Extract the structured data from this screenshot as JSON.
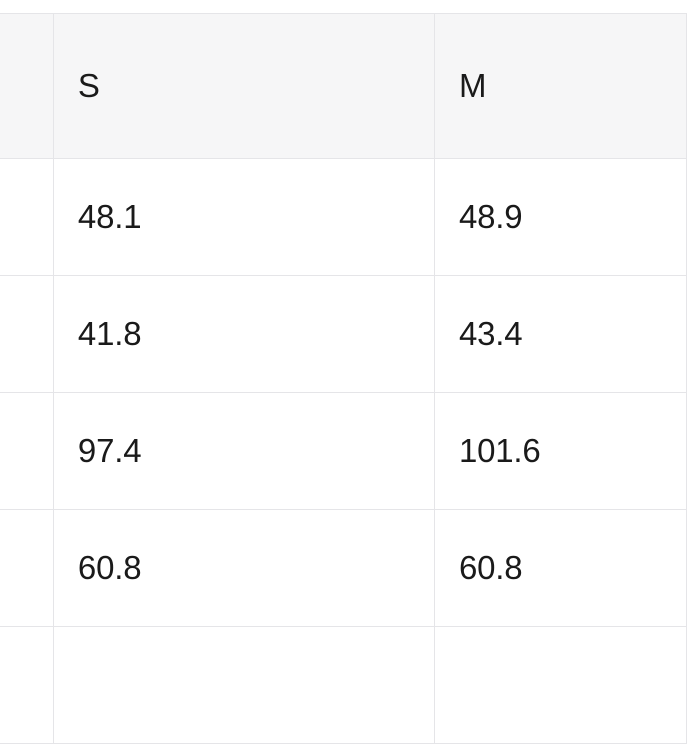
{
  "table": {
    "type": "table",
    "background_color": "#ffffff",
    "header_background": "#f6f6f7",
    "border_color": "#e5e5e8",
    "text_color": "#1a1a1a",
    "font_size": 33,
    "columns": [
      {
        "label": ""
      },
      {
        "label": "S"
      },
      {
        "label": "M"
      }
    ],
    "rows": [
      {
        "cells": [
          "",
          "48.1",
          "48.9"
        ]
      },
      {
        "cells": [
          "",
          "41.8",
          "43.4"
        ]
      },
      {
        "cells": [
          "",
          "97.4",
          "101.6"
        ]
      },
      {
        "cells": [
          "",
          "60.8",
          "60.8"
        ]
      }
    ]
  }
}
